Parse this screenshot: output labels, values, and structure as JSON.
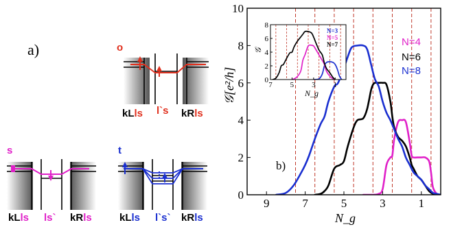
{
  "panel_a": {
    "label": "a)",
    "schematics": {
      "o": {
        "letter": "o",
        "color": "#e0301e",
        "left": "kL",
        "left_suffix": "ls",
        "center": "l`s",
        "right": "kR",
        "right_suffix": "ls"
      },
      "s": {
        "letter": "s",
        "color": "#e020c8",
        "left": "kL",
        "left_suffix": "ls",
        "center": "ls`",
        "right": "kR",
        "right_suffix": "ls"
      },
      "t": {
        "letter": "t",
        "color": "#1a2fd0",
        "left": "kL",
        "left_suffix": "ls",
        "center": "l`s`",
        "right": "kR",
        "right_suffix": "ls"
      }
    }
  },
  "chart_data": [
    {
      "type": "line",
      "panel_label": "b)",
      "xlabel": "N_g",
      "ylabel": "𝒢[e²/h]",
      "xlim": [
        10,
        0
      ],
      "ylim": [
        0,
        10
      ],
      "x_ticks": [
        9,
        7,
        5,
        3,
        1
      ],
      "y_ticks": [
        0,
        2,
        4,
        6,
        8,
        10
      ],
      "vertical_dashed_lines_x": [
        7.5,
        6.5,
        5.5,
        4.5,
        3.5,
        2.5,
        1.5,
        0.5
      ],
      "dashed_color": "#c0392b",
      "series": [
        {
          "name": "N=4",
          "color": "#e020c8",
          "x": [
            4.0,
            3.5,
            3.2,
            3.0,
            2.8,
            2.6,
            2.5,
            2.4,
            2.2,
            2.0,
            1.8,
            1.6,
            1.5,
            1.4,
            1.2,
            1.0,
            0.8,
            0.6,
            0.5,
            0.4,
            0.2,
            0.0
          ],
          "y": [
            0,
            0,
            0.05,
            0.3,
            1.6,
            2.0,
            2.1,
            3.0,
            3.9,
            4.0,
            3.9,
            2.8,
            2.1,
            2.0,
            2.0,
            2.0,
            2.0,
            1.8,
            1.2,
            0.4,
            0.05,
            0
          ]
        },
        {
          "name": "N=6",
          "color": "#000000",
          "x": [
            6.5,
            6.2,
            6.0,
            5.8,
            5.5,
            5.2,
            5.0,
            4.8,
            4.5,
            4.3,
            4.0,
            3.8,
            3.6,
            3.5,
            3.4,
            3.2,
            3.0,
            2.8,
            2.6,
            2.5,
            2.4,
            2.2,
            2.0,
            1.8,
            1.6,
            1.5,
            1.4,
            1.2,
            1.0,
            0.8,
            0.6,
            0.4,
            0.2
          ],
          "y": [
            0,
            0.05,
            0.2,
            0.5,
            1.4,
            1.6,
            1.8,
            2.6,
            3.6,
            4.0,
            4.1,
            4.6,
            5.6,
            5.9,
            6.0,
            6.0,
            6.0,
            5.9,
            5.0,
            4.2,
            3.6,
            3.1,
            2.9,
            2.6,
            2.0,
            1.6,
            1.4,
            1.0,
            0.8,
            0.5,
            0.2,
            0.05,
            0
          ]
        },
        {
          "name": "N=8",
          "color": "#1a2fd0",
          "x": [
            8.5,
            8.0,
            7.6,
            7.2,
            7.0,
            6.8,
            6.5,
            6.2,
            6.0,
            5.8,
            5.5,
            5.3,
            5.0,
            4.8,
            4.6,
            4.3,
            4.0,
            3.8,
            3.6,
            3.4,
            3.2,
            3.0,
            2.8,
            2.6,
            2.4,
            2.2,
            2.0,
            1.8,
            1.6,
            1.4,
            1.2,
            1.0,
            0.8,
            0.6,
            0.4,
            0.2,
            0.0
          ],
          "y": [
            0,
            0.1,
            0.5,
            1.2,
            1.6,
            2.1,
            3.0,
            3.8,
            4.2,
            5.0,
            5.8,
            6.0,
            6.8,
            7.4,
            7.9,
            8.0,
            8.0,
            7.8,
            7.0,
            6.2,
            5.8,
            5.0,
            4.4,
            4.0,
            3.5,
            3.0,
            2.6,
            2.0,
            1.6,
            1.2,
            1.0,
            0.8,
            0.5,
            0.3,
            0.1,
            0.05,
            0
          ]
        }
      ],
      "legend": {
        "placement": "top-right",
        "entries": [
          "N=4",
          "N=6",
          "N=8"
        ]
      }
    },
    {
      "type": "line",
      "inset": true,
      "xlabel": "N_g",
      "ylabel": "𝒢",
      "xlim": [
        7,
        0
      ],
      "ylim": [
        0,
        8
      ],
      "x_ticks": [
        7,
        5,
        3,
        1
      ],
      "y_ticks": [
        0,
        2,
        4,
        6,
        8
      ],
      "vertical_dashed_lines_x": [
        6.5,
        5.5,
        4.5,
        3.5,
        2.5,
        1.5,
        0.5
      ],
      "series": [
        {
          "name": "N=3",
          "color": "#1a2fd0",
          "x": [
            3.0,
            2.5,
            2.2,
            2.0,
            1.8,
            1.5,
            1.2,
            1.0,
            0.8,
            0.6,
            0.4
          ],
          "y": [
            0,
            0.1,
            0.8,
            2.0,
            2.5,
            2.6,
            2.5,
            2.2,
            1.5,
            0.5,
            0
          ]
        },
        {
          "name": "N=5",
          "color": "#e020c8",
          "x": [
            5.0,
            4.6,
            4.2,
            4.0,
            3.8,
            3.5,
            3.2,
            3.0,
            2.8,
            2.5,
            2.2,
            2.0,
            1.8,
            1.5,
            1.2,
            1.0
          ],
          "y": [
            0,
            0.3,
            1.2,
            2.8,
            3.6,
            4.9,
            5.0,
            4.9,
            4.4,
            3.6,
            2.8,
            2.2,
            1.2,
            0.5,
            0.1,
            0
          ]
        },
        {
          "name": "N=7",
          "color": "#000000",
          "x": [
            6.8,
            6.5,
            6.2,
            6.0,
            5.8,
            5.5,
            5.2,
            5.0,
            4.8,
            4.5,
            4.2,
            4.0,
            3.8,
            3.5,
            3.2,
            3.0,
            2.8,
            2.5,
            2.2,
            2.0,
            1.8,
            1.5,
            1.2,
            1.0
          ],
          "y": [
            0,
            0.2,
            1.0,
            2.0,
            2.2,
            3.1,
            3.9,
            4.0,
            4.8,
            5.6,
            6.2,
            6.6,
            7.0,
            7.0,
            6.8,
            6.2,
            5.4,
            4.3,
            3.6,
            2.4,
            1.6,
            1.0,
            0.3,
            0
          ]
        }
      ],
      "legend": {
        "placement": "top-right",
        "entries": [
          "N=3",
          "N=5",
          "N=7"
        ]
      }
    }
  ]
}
